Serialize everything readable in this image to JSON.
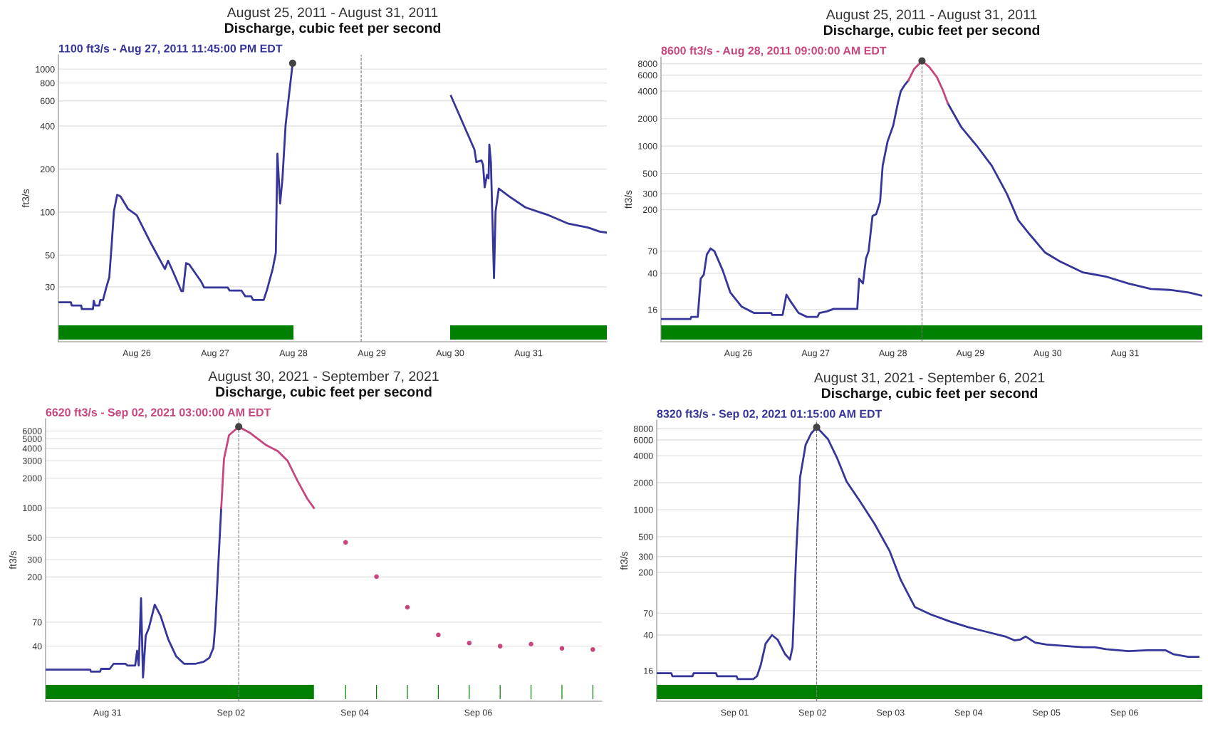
{
  "chart_data": [
    {
      "type": "line",
      "title": "August 25, 2011 - August 31, 2011",
      "subtitle": "Discharge, cubic feet per second",
      "ylabel": "ft3/s",
      "log": true,
      "grid": "y",
      "annotations": [
        "1100 ft3/s - Aug 27, 2011 11:45:00 PM EDT"
      ],
      "xlim": [
        "2011-08-25",
        "2011-09-01"
      ],
      "xticks": [
        {
          "value": "2011-08-26",
          "label": "Aug 26"
        },
        {
          "value": "2011-08-27",
          "label": "Aug 27"
        },
        {
          "value": "2011-08-28",
          "label": "Aug 28"
        },
        {
          "value": "2011-08-29",
          "label": "Aug 29"
        },
        {
          "value": "2011-08-30",
          "label": "Aug 30"
        },
        {
          "value": "2011-08-31",
          "label": "Aug 31"
        }
      ],
      "ylim": [
        12.4,
        1260
      ],
      "yticks": [
        30,
        50,
        100,
        200,
        400,
        600,
        800,
        1000
      ],
      "ref_lines": [
        {
          "axis": "x",
          "value": "2011-08-28T20:45",
          "color": "#777777",
          "line_style": "dashed"
        }
      ],
      "bands": [
        {
          "axis": "x",
          "from": "2011-08-25T00:00",
          "to": "2011-08-28T00:00",
          "color": "#008000"
        },
        {
          "axis": "x",
          "from": "2011-08-30T00:00",
          "to": "2011-09-01T00:00",
          "color": "#008000"
        }
      ],
      "series": [
        {
          "color": "#35359a",
          "x": [
            "2011-08-25T00:00",
            "2011-08-25T03:50",
            "2011-08-25T04:05",
            "2011-08-25T07:00",
            "2011-08-25T07:10",
            "2011-08-25T10:35",
            "2011-08-25T10:50",
            "2011-08-25T11:15",
            "2011-08-25T12:30",
            "2011-08-25T12:50",
            "2011-08-25T13:40",
            "2011-08-25T14:40",
            "2011-08-25T15:35",
            "2011-08-25T16:20",
            "2011-08-25T17:00",
            "2011-08-25T18:00",
            "2011-08-25T19:00",
            "2011-08-25T21:22",
            "2011-08-26T00:00",
            "2011-08-26T04:26",
            "2011-08-26T08:38",
            "2011-08-26T09:36",
            "2011-08-26T11:02",
            "2011-08-26T13:41",
            "2011-08-26T14:10",
            "2011-08-26T15:07",
            "2011-08-26T16:05",
            "2011-08-26T19:41",
            "2011-08-26T20:38",
            "2011-08-27T03:50",
            "2011-08-27T04:26",
            "2011-08-27T08:02",
            "2011-08-27T09:14",
            "2011-08-27T11:02",
            "2011-08-27T11:38",
            "2011-08-27T14:53",
            "2011-08-27T15:50",
            "2011-08-27T17:38",
            "2011-08-27T18:36",
            "2011-08-27T19:05",
            "2011-08-27T19:55",
            "2011-08-27T20:38",
            "2011-08-27T21:36",
            "2011-08-27T23:45",
            "2011-08-28T12:00",
            "2011-08-30T00:15",
            "2011-08-30T07:26",
            "2011-08-30T08:02",
            "2011-08-30T09:36",
            "2011-08-30T10:05",
            "2011-08-30T10:34",
            "2011-08-30T11:17",
            "2011-08-30T11:46",
            "2011-08-30T12:00",
            "2011-08-30T12:29",
            "2011-08-30T13:26",
            "2011-08-30T13:55",
            "2011-08-30T14:53",
            "2011-08-30T18:14",
            "2011-08-30T23:02",
            "2011-08-31T06:14",
            "2011-08-31T12:14",
            "2011-08-31T18:14",
            "2011-08-31T21:50",
            "2011-08-31T23:45"
          ],
          "values": [
            23.4,
            23.4,
            22.2,
            22.2,
            21,
            21,
            24,
            22.2,
            22.2,
            24.3,
            24.3,
            29.7,
            35,
            60,
            101,
            132,
            129,
            105,
            95,
            60,
            40,
            45.7,
            38.7,
            28,
            28,
            44,
            43,
            32.8,
            29.7,
            29.7,
            28.3,
            28.3,
            25.8,
            25.8,
            24.3,
            24.3,
            28.3,
            40,
            52,
            256,
            115,
            172,
            408,
            1100,
            null,
            650,
            274,
            224,
            230,
            214,
            149,
            182,
            172,
            297,
            224,
            34.5,
            101,
            146,
            128,
            108,
            95,
            83,
            78,
            73,
            72
          ]
        },
        {
          "type": "scatter",
          "marker": "circle",
          "color": "#444444",
          "x": [
            "2011-08-27T23:45"
          ],
          "values": [
            1100
          ]
        }
      ]
    },
    {
      "type": "line",
      "title": "August 25, 2011 - August 31, 2011",
      "subtitle": "Discharge, cubic feet per second",
      "ylabel": "ft3/s",
      "log": true,
      "grid": "y",
      "annotations": [
        "8600 ft3/s - Aug 28, 2011 09:00:00 AM EDT"
      ],
      "xlim": [
        "2011-08-25",
        "2011-09-01"
      ],
      "xticks": [
        {
          "value": "2011-08-26",
          "label": "Aug 26"
        },
        {
          "value": "2011-08-27",
          "label": "Aug 27"
        },
        {
          "value": "2011-08-28",
          "label": "Aug 28"
        },
        {
          "value": "2011-08-29",
          "label": "Aug 29"
        },
        {
          "value": "2011-08-30",
          "label": "Aug 30"
        },
        {
          "value": "2011-08-31",
          "label": "Aug 31"
        }
      ],
      "ylim": [
        7.1,
        9500
      ],
      "yticks": [
        16,
        40,
        70,
        200,
        300,
        500,
        1000,
        2000,
        4000,
        6000,
        8000
      ],
      "ref_lines": [
        {
          "axis": "x",
          "value": "2011-08-28T09:00",
          "color": "#777777",
          "line_style": "dashed"
        }
      ],
      "bands": [
        {
          "axis": "x",
          "from": "2011-08-25T00:00",
          "to": "2011-09-01T00:00",
          "color": "#008000"
        }
      ],
      "series": [
        {
          "color": "#35359a",
          "x": [
            "2011-08-25T00:00",
            "2011-08-25T09:10",
            "2011-08-25T09:24",
            "2011-08-25T11:25",
            "2011-08-25T12:20",
            "2011-08-25T13:17",
            "2011-08-25T14:14",
            "2011-08-25T15:24",
            "2011-08-25T16:35",
            "2011-08-25T19:10",
            "2011-08-25T21:31",
            "2011-08-26T01:03",
            "2011-08-26T04:49",
            "2011-08-26T10:13",
            "2011-08-26T10:28",
            "2011-08-26T13:45",
            "2011-08-26T14:56",
            "2011-08-26T16:20",
            "2011-08-26T18:41",
            "2011-08-26T21:17",
            "2011-08-27T00:34",
            "2011-08-27T01:10",
            "2011-08-27T03:31",
            "2011-08-27T05:38",
            "2011-08-27T12:55",
            "2011-08-27T13:30",
            "2011-08-27T14:41",
            "2011-08-27T15:38",
            "2011-08-27T16:26",
            "2011-08-27T17:38",
            "2011-08-27T18:48",
            "2011-08-27T20:00",
            "2011-08-27T20:48",
            "2011-08-27T22:19",
            "2011-08-28T00:05",
            "2011-08-28T01:30",
            "2011-08-28T02:26",
            "2011-08-28T03:36",
            "2011-08-28T04:48",
            "2011-08-28T09:00",
            "2011-08-28T17:02",
            "2011-08-28T21:15",
            "2011-08-29T01:58",
            "2011-08-29T06:40",
            "2011-08-29T11:22",
            "2011-08-29T14:54",
            "2011-08-29T18:26",
            "2011-08-29T23:08",
            "2011-08-30T03:50",
            "2011-08-30T10:53",
            "2011-08-30T17:55",
            "2011-08-31T00:59",
            "2011-08-31T08:04",
            "2011-08-31T13:56",
            "2011-08-31T19:50",
            "2011-08-31T23:42"
          ],
          "values": [
            12.6,
            12.6,
            13.3,
            13.3,
            35,
            38.6,
            64.5,
            75,
            70,
            43,
            24.6,
            17.2,
            14.7,
            14.7,
            14,
            14,
            23.3,
            19.4,
            14.7,
            13.3,
            13.3,
            14.7,
            15.3,
            16.3,
            16.3,
            35,
            31,
            58.4,
            70,
            170,
            179,
            243,
            607,
            1118,
            1680,
            2940,
            4000,
            4650,
            5260,
            null,
            2940,
            1600,
            1010,
            607,
            298,
            153,
            107,
            68,
            54,
            41,
            37,
            31,
            27,
            26.3,
            24.6,
            22.8
          ]
        },
        {
          "color": "#c8467f",
          "x": [
            "2011-08-28T04:48",
            "2011-08-28T06:34",
            "2011-08-28T09:00",
            "2011-08-28T11:16",
            "2011-08-28T13:38",
            "2011-08-28T15:22",
            "2011-08-28T17:02"
          ],
          "values": [
            5260,
            7000,
            8600,
            7360,
            5700,
            4200,
            2940
          ]
        },
        {
          "type": "scatter",
          "marker": "circle",
          "color": "#444444",
          "x": [
            "2011-08-28T09:00"
          ],
          "values": [
            8600
          ]
        }
      ]
    },
    {
      "type": "line",
      "title": "August 30, 2021 - September 7, 2021",
      "subtitle": "Discharge, cubic feet per second",
      "ylabel": "ft3/s",
      "log": true,
      "grid": "y",
      "annotations": [
        "6620 ft3/s - Sep 02, 2021 03:00:00 AM EDT"
      ],
      "xlim": [
        "2021-08-30",
        "2021-09-08"
      ],
      "xticks": [
        {
          "value": "2021-08-31",
          "label": "Aug 31"
        },
        {
          "value": "2021-09-02",
          "label": "Sep 02"
        },
        {
          "value": "2021-09-04",
          "label": "Sep 04"
        },
        {
          "value": "2021-09-06",
          "label": "Sep 06"
        }
      ],
      "ylim": [
        11.1,
        8000
      ],
      "yticks": [
        40,
        70,
        200,
        300,
        500,
        1000,
        2000,
        3000,
        4000,
        5000,
        6000
      ],
      "ref_lines": [
        {
          "axis": "x",
          "value": "2021-09-02T03:00",
          "color": "#777777",
          "line_style": "dashed"
        }
      ],
      "bands": [
        {
          "axis": "x",
          "from": "2021-08-30T00:00",
          "to": "2021-09-03T08:12",
          "color": "#008000"
        },
        {
          "axis": "x",
          "from": "2021-09-03T20:20",
          "to": "2021-09-03T20:40",
          "color": "#008000"
        },
        {
          "axis": "x",
          "from": "2021-09-04T08:20",
          "to": "2021-09-04T08:40",
          "color": "#008000"
        },
        {
          "axis": "x",
          "from": "2021-09-04T20:20",
          "to": "2021-09-04T20:40",
          "color": "#008000"
        },
        {
          "axis": "x",
          "from": "2021-09-05T08:20",
          "to": "2021-09-05T08:40",
          "color": "#008000"
        },
        {
          "axis": "x",
          "from": "2021-09-05T20:20",
          "to": "2021-09-05T20:40",
          "color": "#008000"
        },
        {
          "axis": "x",
          "from": "2021-09-06T08:20",
          "to": "2021-09-06T08:40",
          "color": "#008000"
        },
        {
          "axis": "x",
          "from": "2021-09-06T20:20",
          "to": "2021-09-06T20:40",
          "color": "#008000"
        },
        {
          "axis": "x",
          "from": "2021-09-07T08:20",
          "to": "2021-09-07T08:40",
          "color": "#008000"
        },
        {
          "axis": "x",
          "from": "2021-09-07T20:20",
          "to": "2021-09-07T20:40",
          "color": "#008000"
        }
      ],
      "series": [
        {
          "color": "#35359a",
          "x": [
            "2021-08-30T00:00",
            "2021-08-30T17:19",
            "2021-08-30T17:37",
            "2021-08-30T21:07",
            "2021-08-30T21:34",
            "2021-08-31T00:55",
            "2021-08-31T02:26",
            "2021-08-31T07:00",
            "2021-08-31T07:45",
            "2021-08-31T10:47",
            "2021-08-31T11:33",
            "2021-08-31T12:10",
            "2021-08-31T13:04",
            "2021-08-31T13:50",
            "2021-08-31T14:53",
            "2021-08-31T16:06",
            "2021-08-31T18:23",
            "2021-08-31T20:40",
            "2021-08-31T23:42",
            "2021-09-01T02:44",
            "2021-09-01T05:46",
            "2021-09-01T10:20",
            "2021-09-01T13:22",
            "2021-09-01T15:38",
            "2021-09-01T17:10",
            "2021-09-01T17:56",
            "2021-09-01T18:50",
            "2021-09-01T20:12"
          ],
          "values": [
            23.2,
            23.2,
            22.1,
            22.1,
            23.6,
            23.6,
            26.6,
            26.6,
            25.5,
            25.5,
            36,
            25.5,
            122,
            19.3,
            51,
            61,
            105,
            81,
            46.4,
            31.5,
            26.6,
            26.6,
            27.8,
            30.6,
            38.5,
            67,
            204,
            1000
          ]
        },
        {
          "color": "#c8467f",
          "x": [
            "2021-09-01T20:12",
            "2021-09-01T21:16",
            "2021-09-01T23:14",
            "2021-09-02T03:00",
            "2021-09-02T07:36",
            "2021-09-02T13:40",
            "2021-09-02T18:13",
            "2021-09-02T22:01",
            "2021-09-03T01:49",
            "2021-09-03T05:37",
            "2021-09-03T08:12"
          ],
          "values": [
            1000,
            3120,
            5440,
            6620,
            5690,
            4310,
            3750,
            2980,
            1880,
            1240,
            1000
          ]
        },
        {
          "type": "scatter",
          "marker": "circle",
          "color": "#c8467f",
          "x": [
            "2021-09-03T20:30",
            "2021-09-04T08:30",
            "2021-09-04T20:30",
            "2021-09-05T08:30",
            "2021-09-05T20:30",
            "2021-09-06T08:30",
            "2021-09-06T20:30",
            "2021-09-07T08:30",
            "2021-09-07T20:30"
          ],
          "values": [
            448,
            202,
            99,
            52,
            43,
            40,
            42,
            38,
            37
          ]
        },
        {
          "type": "scatter",
          "marker": "circle",
          "color": "#444444",
          "x": [
            "2021-09-02T03:00"
          ],
          "values": [
            6620
          ]
        }
      ]
    },
    {
      "type": "line",
      "title": "August 31, 2021 - September 6, 2021",
      "subtitle": "Discharge, cubic feet per second",
      "ylabel": "ft3/s",
      "log": true,
      "grid": "y",
      "annotations": [
        "8320 ft3/s - Sep 02, 2021 01:15:00 AM EDT"
      ],
      "xlim": [
        "2021-08-31",
        "2021-09-07"
      ],
      "xticks": [
        {
          "value": "2021-09-01",
          "label": "Sep 01"
        },
        {
          "value": "2021-09-02",
          "label": "Sep 02"
        },
        {
          "value": "2021-09-03",
          "label": "Sep 03"
        },
        {
          "value": "2021-09-04",
          "label": "Sep 04"
        },
        {
          "value": "2021-09-05",
          "label": "Sep 05"
        },
        {
          "value": "2021-09-06",
          "label": "Sep 06"
        }
      ],
      "ylim": [
        7.3,
        10000
      ],
      "yticks": [
        16,
        40,
        70,
        200,
        300,
        500,
        1000,
        2000,
        4000,
        6000,
        8000
      ],
      "ref_lines": [
        {
          "axis": "x",
          "value": "2021-09-02T01:15",
          "color": "#777777",
          "line_style": "dashed"
        }
      ],
      "bands": [
        {
          "axis": "x",
          "from": "2021-08-31T00:00",
          "to": "2021-09-07T00:00",
          "color": "#008000"
        }
      ],
      "series": [
        {
          "color": "#35359a",
          "x": [
            "2021-08-31T00:00",
            "2021-08-31T04:29",
            "2021-08-31T04:50",
            "2021-08-31T11:02",
            "2021-08-31T11:23",
            "2021-08-31T18:16",
            "2021-08-31T18:37",
            "2021-09-01T00:35",
            "2021-09-01T00:56",
            "2021-09-01T05:45",
            "2021-09-01T06:54",
            "2021-09-01T08:03",
            "2021-09-01T09:33",
            "2021-09-01T11:30",
            "2021-09-01T13:14",
            "2021-09-01T15:32",
            "2021-09-01T17:01",
            "2021-09-01T17:50",
            "2021-09-01T18:59",
            "2021-09-01T20:08",
            "2021-09-01T21:51",
            "2021-09-01T23:34",
            "2021-09-02T01:15",
            "2021-09-02T04:44",
            "2021-09-02T07:36",
            "2021-09-02T10:29",
            "2021-09-02T14:30",
            "2021-09-02T19:06",
            "2021-09-02T23:42",
            "2021-09-03T03:08",
            "2021-09-03T07:30",
            "2021-09-03T12:20",
            "2021-09-03T18:05",
            "2021-09-03T23:50",
            "2021-09-04T05:35",
            "2021-09-04T11:20",
            "2021-09-04T14:11",
            "2021-09-04T15:55",
            "2021-09-04T17:38",
            "2021-09-04T20:31",
            "2021-09-05T00:00",
            "2021-09-05T08:00",
            "2021-09-05T11:26",
            "2021-09-05T14:53",
            "2021-09-05T18:20",
            "2021-09-06T01:14",
            "2021-09-06T06:59",
            "2021-09-06T12:43",
            "2021-09-06T15:01",
            "2021-09-06T19:37",
            "2021-09-06T22:50"
          ],
          "values": [
            15,
            15,
            13.9,
            13.9,
            15,
            15,
            13.9,
            13.9,
            12.9,
            12.9,
            13.9,
            18.6,
            32.2,
            40,
            35.5,
            24.5,
            21.3,
            29.2,
            347,
            2270,
            5280,
            7100,
            8320,
            6130,
            3730,
            2060,
            1256,
            693,
            347,
            165,
            82,
            68,
            57,
            49,
            43.4,
            38.5,
            34.8,
            35.5,
            38.5,
            32.9,
            31.3,
            29.8,
            29.2,
            29.2,
            27.8,
            26.4,
            27,
            27,
            24.5,
            22.8,
            22.8
          ]
        },
        {
          "type": "scatter",
          "marker": "circle",
          "color": "#444444",
          "x": [
            "2021-09-02T01:15"
          ],
          "values": [
            8320
          ]
        }
      ]
    }
  ]
}
